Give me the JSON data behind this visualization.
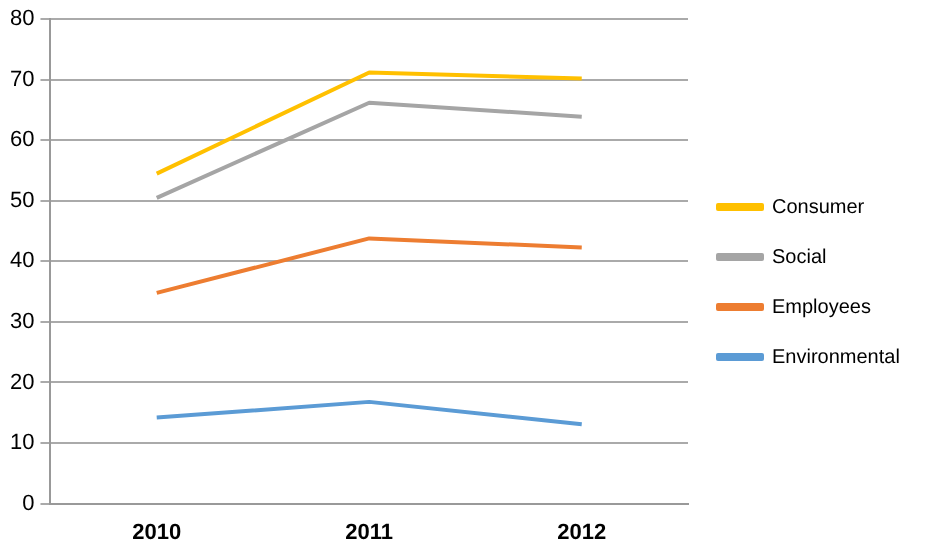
{
  "chart_data": {
    "type": "line",
    "categories": [
      "2010",
      "2011",
      "2012"
    ],
    "series": [
      {
        "name": "Consumer",
        "color": "#ffc000",
        "values": [
          54.5,
          71.2,
          70.2
        ]
      },
      {
        "name": "Social",
        "color": "#a5a5a5",
        "values": [
          50.5,
          66.2,
          63.9
        ]
      },
      {
        "name": "Employees",
        "color": "#ed7d31",
        "values": [
          34.8,
          43.8,
          42.3
        ]
      },
      {
        "name": "Environmental",
        "color": "#5b9bd5",
        "values": [
          14.2,
          16.8,
          13.1
        ]
      }
    ],
    "ylim": [
      0,
      80
    ],
    "yticks": [
      0,
      10,
      20,
      30,
      40,
      50,
      60,
      70,
      80
    ],
    "grid": "y",
    "legend": "right",
    "marker": "none"
  }
}
